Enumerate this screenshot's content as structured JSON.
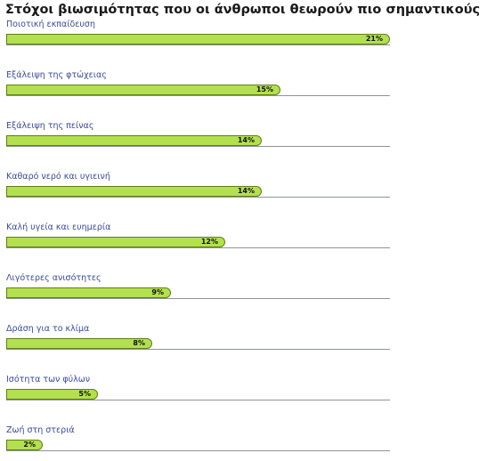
{
  "chart_data": {
    "type": "bar",
    "orientation": "horizontal",
    "title": "Στόχοι βιωσιμότητας που οι άνθρωποι θεωρούν πιο σημαντικούς",
    "xlim": [
      0,
      21
    ],
    "bar_color": "#b3e04e",
    "bar_edge_color": "#5f7f16",
    "label_color": "#3a4a9c",
    "categories": [
      "Ποιοτική εκπαίδευση",
      "Εξάλειψη της φτώχειας",
      "Εξάλειψη της πείνας",
      "Καθαρό νερό και υγιεινή",
      "Καλή υγεία και ευημερία",
      "Λιγότερες ανισότητες",
      "Δράση για το κλίμα",
      "Ισότητα των φύλων",
      "Ζωή στη στεριά"
    ],
    "values": [
      21,
      15,
      14,
      14,
      12,
      9,
      8,
      5,
      2
    ],
    "value_labels": [
      "21%",
      "15%",
      "14%",
      "14%",
      "12%",
      "9%",
      "8%",
      "5%",
      "2%"
    ]
  }
}
